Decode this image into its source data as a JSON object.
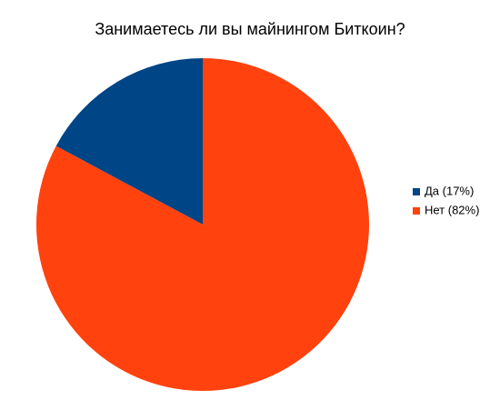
{
  "chart_data": {
    "type": "pie",
    "title": "Занимаетесь ли вы майнингом Биткоин?",
    "categories": [
      "Да (17%)",
      "Нет (82%)"
    ],
    "values": [
      17,
      82
    ],
    "colors": [
      "#004586",
      "#ff420e"
    ],
    "legend": "right"
  }
}
